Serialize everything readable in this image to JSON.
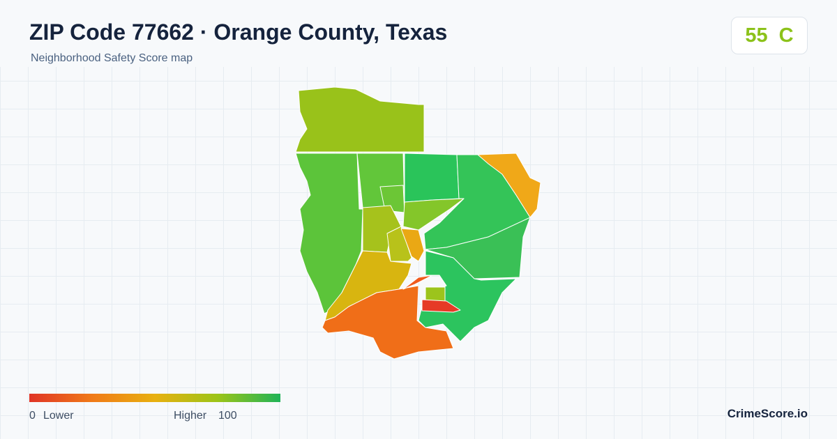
{
  "header": {
    "title": "ZIP Code 77662 · Orange County, Texas",
    "subtitle": "Neighborhood Safety Score map"
  },
  "badge": {
    "score": 55,
    "grade": "C"
  },
  "legend": {
    "min": 0,
    "min_label": "Lower",
    "max_label": "Higher",
    "max": 100
  },
  "brand": "CrimeScore.io"
}
